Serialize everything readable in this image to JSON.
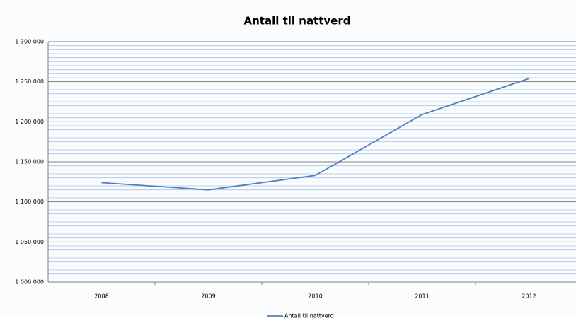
{
  "chart_data": {
    "type": "line",
    "title": "Antall til nattverd",
    "categories": [
      "2008",
      "2009",
      "2010",
      "2011",
      "2012"
    ],
    "series": [
      {
        "name": "Antall til nattverd",
        "color": "#4f81bd",
        "values": [
          1124000,
          1115000,
          1133000,
          1209000,
          1254000
        ]
      }
    ],
    "ylim": [
      1000000,
      1300000
    ],
    "yticks": [
      {
        "value": 1000000,
        "label": "1 000 000"
      },
      {
        "value": 1050000,
        "label": "1 050 000"
      },
      {
        "value": 1100000,
        "label": "1 100 000"
      },
      {
        "value": 1150000,
        "label": "1 150 000"
      },
      {
        "value": 1200000,
        "label": "1 200 000"
      },
      {
        "value": 1250000,
        "label": "1 250 000"
      },
      {
        "value": 1300000,
        "label": "1 300 000"
      }
    ],
    "grid": true,
    "legend": "bottom"
  }
}
